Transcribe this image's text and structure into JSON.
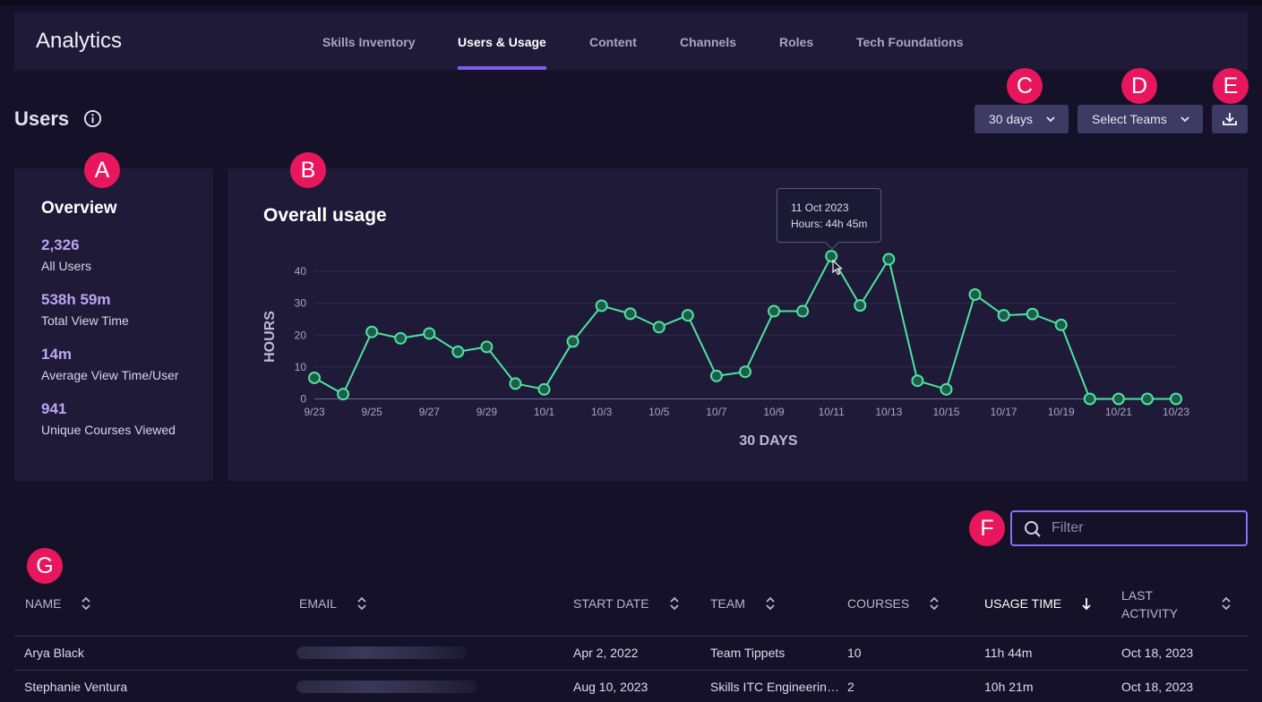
{
  "app": {
    "title": "Analytics"
  },
  "nav": {
    "tabs": [
      {
        "label": "Skills Inventory",
        "active": false
      },
      {
        "label": "Users & Usage",
        "active": true
      },
      {
        "label": "Content",
        "active": false
      },
      {
        "label": "Channels",
        "active": false
      },
      {
        "label": "Roles",
        "active": false
      },
      {
        "label": "Tech Foundations",
        "active": false
      }
    ]
  },
  "section": {
    "title": "Users",
    "info_icon": "info-circle-icon"
  },
  "controls": {
    "date_range": "30 days",
    "teams": "Select Teams",
    "download_icon": "download-icon"
  },
  "markers": [
    "A",
    "B",
    "C",
    "D",
    "E",
    "F",
    "G"
  ],
  "overview": {
    "title": "Overview",
    "stats": [
      {
        "value": "2,326",
        "label": "All Users"
      },
      {
        "value": "538h 59m",
        "label": "Total View Time"
      },
      {
        "value": "14m",
        "label": "Average View Time/User"
      },
      {
        "value": "941",
        "label": "Unique Courses Viewed"
      }
    ]
  },
  "usage": {
    "title": "Overall usage"
  },
  "tooltip": {
    "date": "11 Oct 2023",
    "hours": "Hours: 44h 45m"
  },
  "chart_data": {
    "type": "line",
    "xlabel": "30 DAYS",
    "ylabel": "HOURS",
    "ylim": [
      0,
      40
    ],
    "yticks": [
      0,
      10,
      20,
      30,
      40
    ],
    "grid": true,
    "line_color": "#4fe3a0",
    "x": [
      "9/23",
      "9/24",
      "9/25",
      "9/26",
      "9/27",
      "9/28",
      "9/29",
      "9/30",
      "10/1",
      "10/2",
      "10/3",
      "10/4",
      "10/5",
      "10/6",
      "10/7",
      "10/8",
      "10/9",
      "10/10",
      "10/11",
      "10/12",
      "10/13",
      "10/14",
      "10/15",
      "10/16",
      "10/17",
      "10/18",
      "10/19",
      "10/20",
      "10/21",
      "10/22",
      "10/23"
    ],
    "xtick_labels": [
      "9/23",
      "9/25",
      "9/27",
      "9/29",
      "10/1",
      "10/3",
      "10/5",
      "10/7",
      "10/9",
      "10/11",
      "10/13",
      "10/15",
      "10/17",
      "10/19",
      "10/21",
      "10/23"
    ],
    "values": [
      6.6,
      1.5,
      21,
      19,
      20.5,
      14.8,
      16.3,
      4.8,
      3,
      18,
      29.2,
      26.7,
      22.5,
      26.2,
      7.2,
      8.5,
      27.5,
      27.5,
      44.75,
      29.3,
      43.8,
      5.7,
      3,
      32.7,
      26.2,
      26.6,
      23.2,
      0,
      0,
      0,
      0
    ]
  },
  "filter": {
    "placeholder": "Filter"
  },
  "table": {
    "columns": [
      {
        "label": "NAME"
      },
      {
        "label": "EMAIL"
      },
      {
        "label": "START DATE"
      },
      {
        "label": "TEAM"
      },
      {
        "label": "COURSES"
      },
      {
        "label": "USAGE TIME"
      },
      {
        "label": "LAST ACTIVITY"
      }
    ],
    "rows": [
      {
        "name": "Arya Black",
        "start_date": "Apr 2, 2022",
        "team": "Team Tippets",
        "courses": "10",
        "usage_time": "11h 44m",
        "last_activity": "Oct 18, 2023"
      },
      {
        "name": "Stephanie Ventura",
        "start_date": "Aug 10, 2023",
        "team": "Skills ITC Engineerin…",
        "courses": "2",
        "usage_time": "10h 21m",
        "last_activity": "Oct 18, 2023"
      }
    ]
  }
}
